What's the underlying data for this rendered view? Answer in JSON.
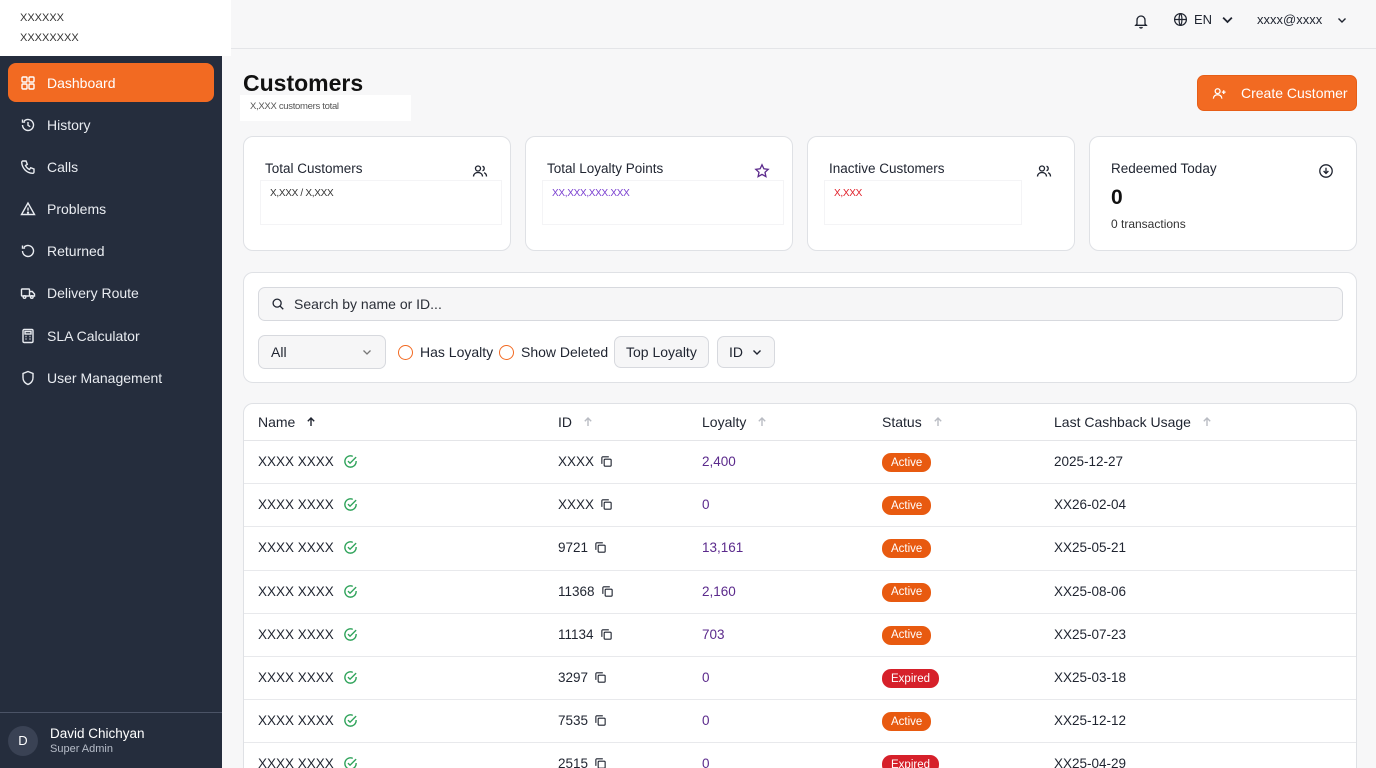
{
  "brand": {
    "line1": "XXXXXX",
    "line2": "XXXXXXXX"
  },
  "sidebar": {
    "items": [
      {
        "label": "Dashboard",
        "icon": "grid-icon",
        "active": true
      },
      {
        "label": "History",
        "icon": "history-icon"
      },
      {
        "label": "Calls",
        "icon": "phone-icon"
      },
      {
        "label": "Problems",
        "icon": "warning-icon"
      },
      {
        "label": "Returned",
        "icon": "return-icon"
      },
      {
        "label": "Delivery Route",
        "icon": "truck-icon"
      },
      {
        "label": "SLA Calculator",
        "icon": "calculator-icon"
      },
      {
        "label": "User Management",
        "icon": "shield-icon"
      }
    ],
    "user": {
      "initial": "D",
      "name": "David Chichyan",
      "role": "Super Admin"
    }
  },
  "topbar": {
    "language": "EN",
    "account": "xxxx@xxxx"
  },
  "page": {
    "title": "Customers",
    "subtitle": "X,XXX customers total",
    "create_label": "Create Customer"
  },
  "stats": [
    {
      "title": "Total Customers",
      "value": "X,XXX / X,XXX",
      "icon": "users-icon",
      "color": "#333333"
    },
    {
      "title": "Total Loyalty Points",
      "value": "XX,XXX,XXX.XXX",
      "icon": "star-icon",
      "color": "#7a3fd0"
    },
    {
      "title": "Inactive Customers",
      "value": "X,XXX",
      "icon": "users-icon",
      "color": "#e0202a"
    },
    {
      "title": "Redeemed Today",
      "value": "0",
      "sub": "0 transactions",
      "icon": "download-circle-icon"
    }
  ],
  "filters": {
    "search_placeholder": "Search by name or ID...",
    "status_select": "All",
    "has_loyalty": "Has Loyalty",
    "show_deleted": "Show Deleted",
    "top_loyalty": "Top Loyalty",
    "sort_select": "ID"
  },
  "table": {
    "columns": [
      "Name",
      "ID",
      "Loyalty",
      "Status",
      "Last Cashback Usage"
    ],
    "rows": [
      {
        "name": "XXXX XXXX",
        "id": "XXXX",
        "loyalty": "2,400",
        "status": "Active",
        "last": "2025-12-27"
      },
      {
        "name": "XXXX XXXX",
        "id": "XXXX",
        "loyalty": "0",
        "status": "Active",
        "last": "XX26-02-04"
      },
      {
        "name": "XXXX XXXX",
        "id": "9721",
        "loyalty": "13,161",
        "status": "Active",
        "last": "XX25-05-21"
      },
      {
        "name": "XXXX XXXX",
        "id": "11368",
        "loyalty": "2,160",
        "status": "Active",
        "last": "XX25-08-06"
      },
      {
        "name": "XXXX XXXX",
        "id": "11134",
        "loyalty": "703",
        "status": "Active",
        "last": "XX25-07-23"
      },
      {
        "name": "XXXX XXXX",
        "id": "3297",
        "loyalty": "0",
        "status": "Expired",
        "last": "XX25-03-18"
      },
      {
        "name": "XXXX XXXX",
        "id": "7535",
        "loyalty": "0",
        "status": "Active",
        "last": "XX25-12-12"
      },
      {
        "name": "XXXX XXXX",
        "id": "2515",
        "loyalty": "0",
        "status": "Expired",
        "last": "XX25-04-29"
      }
    ]
  },
  "colors": {
    "accent": "#f26a22",
    "sidebar": "#252d3d",
    "active_badge": "#e85a10",
    "expired_badge": "#d6202a",
    "loyalty_text": "#5b2a8c"
  }
}
